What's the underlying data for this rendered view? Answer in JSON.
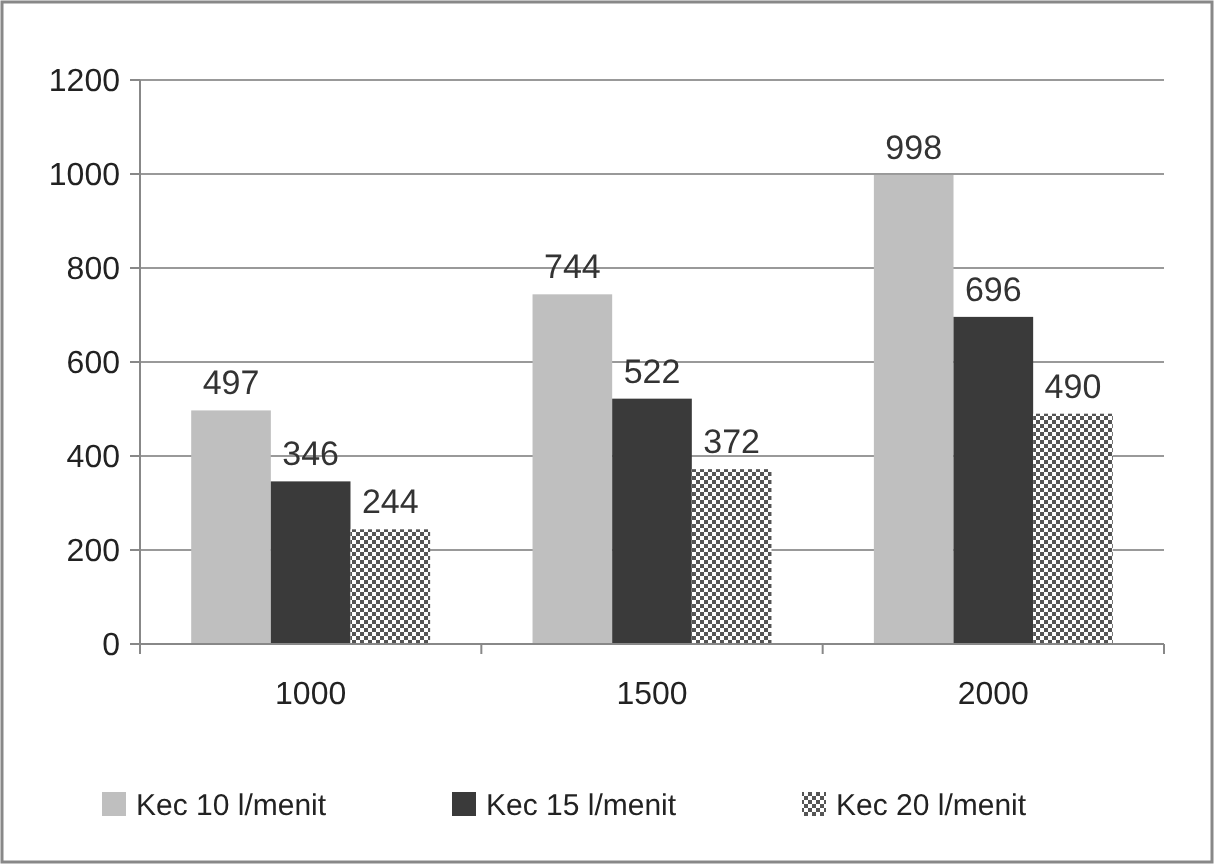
{
  "chart_data": {
    "type": "bar",
    "categories": [
      "1000",
      "1500",
      "2000"
    ],
    "series": [
      {
        "name": "Kec 10 l/menit",
        "color": "#bfbfbf",
        "values": [
          497,
          744,
          998
        ]
      },
      {
        "name": "Kec 15 l/menit",
        "color": "#3a3a3a",
        "values": [
          346,
          522,
          696
        ]
      },
      {
        "name": "Kec 20 l/menit",
        "color": "#555555",
        "values": [
          244,
          372,
          490
        ]
      }
    ],
    "ylim": [
      0,
      1200
    ],
    "yticks": [
      0,
      200,
      400,
      600,
      800,
      1000,
      1200
    ],
    "grid": "y",
    "legend": "bottom",
    "data_labels": true
  }
}
